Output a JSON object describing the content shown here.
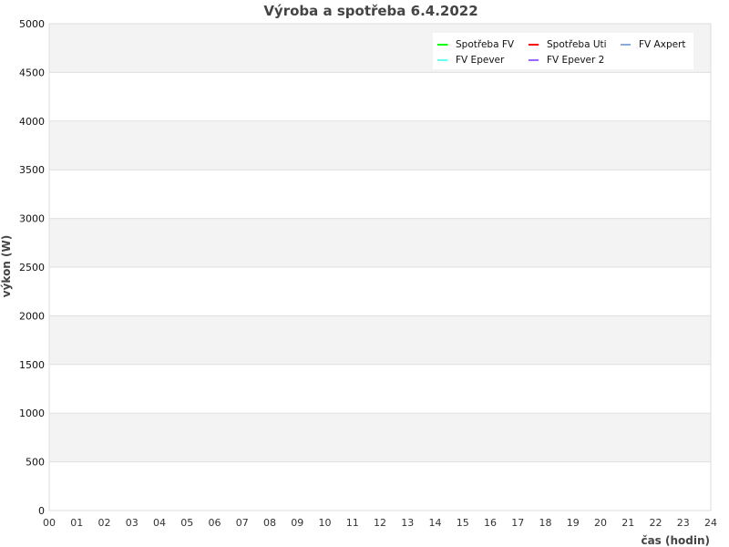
{
  "chart_data": {
    "type": "line",
    "title": "Výroba a spotřeba 6.4.2022",
    "xlabel": "čas (hodin)",
    "ylabel": "výkon (W)",
    "xlim": [
      0,
      24
    ],
    "ylim": [
      0,
      5000
    ],
    "x_ticks": [
      "00",
      "01",
      "02",
      "03",
      "04",
      "05",
      "06",
      "07",
      "08",
      "09",
      "10",
      "11",
      "12",
      "13",
      "14",
      "15",
      "16",
      "17",
      "18",
      "19",
      "20",
      "21",
      "22",
      "23",
      "24"
    ],
    "y_ticks": [
      0,
      500,
      1000,
      1500,
      2000,
      2500,
      3000,
      3500,
      4000,
      4500,
      5000
    ],
    "grid": true,
    "legend_position": "top-right",
    "series": [
      {
        "name": "Spotřeba FV",
        "color": "#00ff00",
        "values": []
      },
      {
        "name": "Spotřeba Uti",
        "color": "#ff0000",
        "values": []
      },
      {
        "name": "FV Axpert",
        "color": "#88aadd",
        "values": []
      },
      {
        "name": "FV Epever",
        "color": "#66ffee",
        "values": []
      },
      {
        "name": "FV Epever 2",
        "color": "#9966ff",
        "values": []
      }
    ]
  }
}
